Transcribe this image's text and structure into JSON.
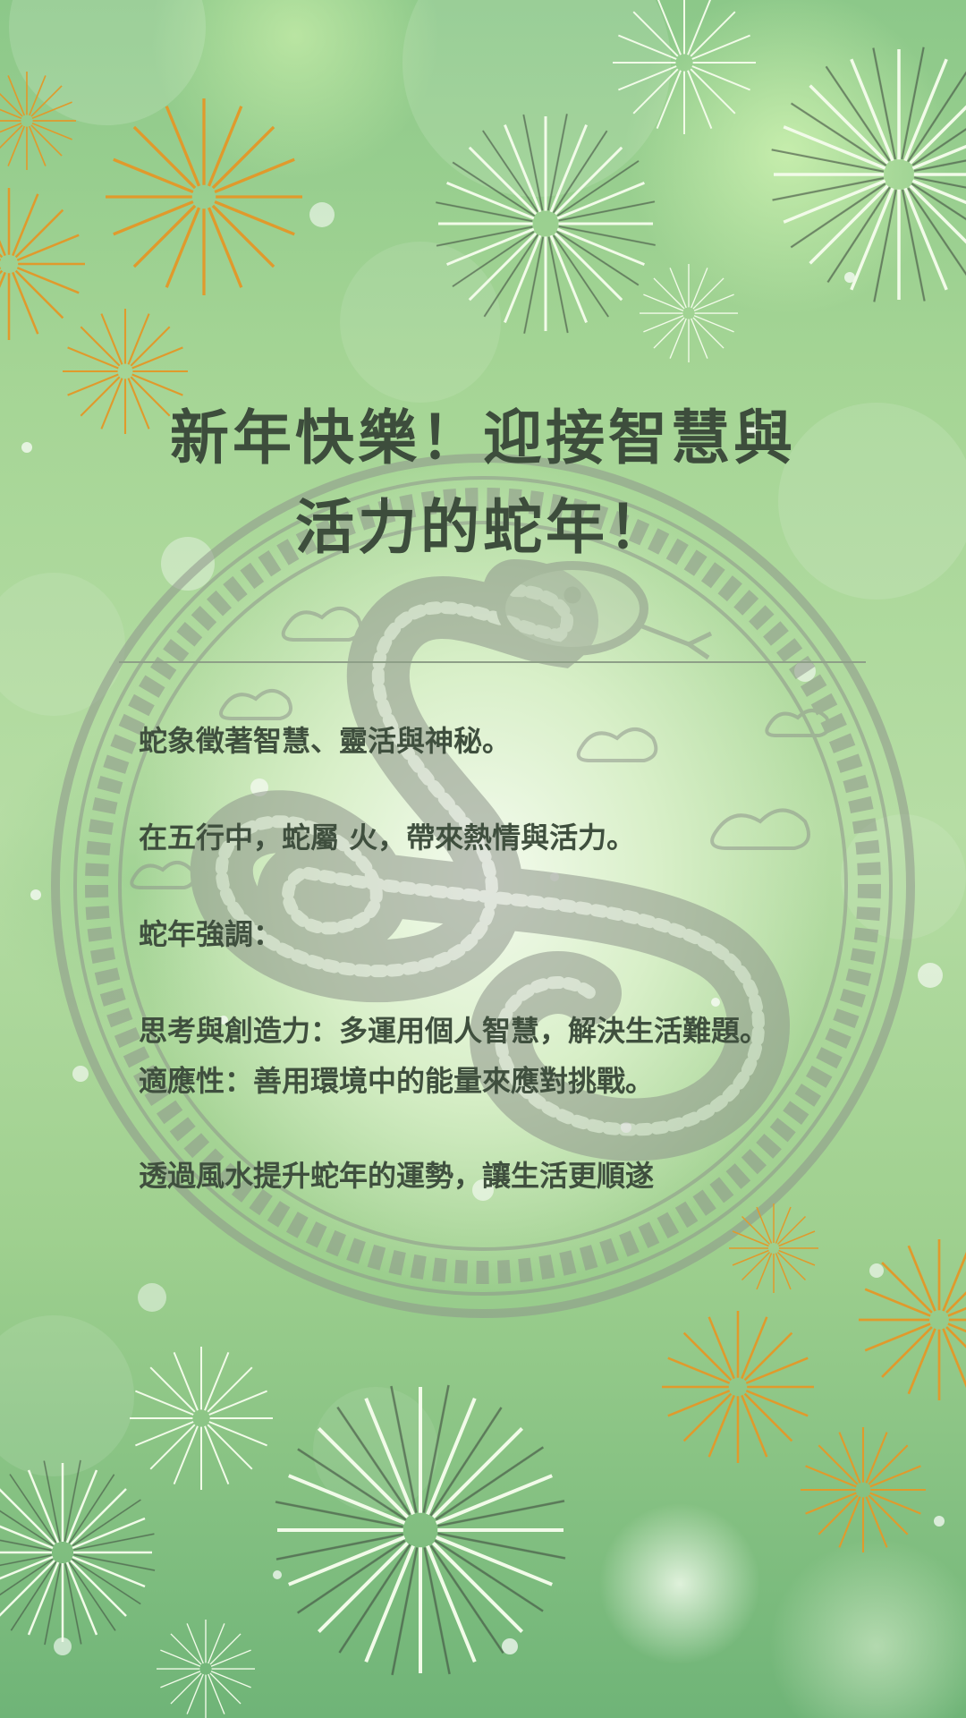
{
  "title": {
    "line1": "新年快樂！迎接智慧與",
    "line2": "活力的蛇年！"
  },
  "content": {
    "p1": "蛇象徵著智慧、靈活與神秘。",
    "p2": "在五行中，蛇屬 火，帶來熱情與活力。",
    "p3": "蛇年強調：",
    "p4a": "思考與創造力：多運用個人智慧，解決生活難題。",
    "p4b": "適應性：善用環境中的能量來應對挑戰。",
    "p5": "透過風水提升蛇年的運勢，讓生活更順遂"
  },
  "colors": {
    "background": "#a5d595",
    "text": "#3d4d3c",
    "firework_orange": "#e09a2c",
    "firework_light": "#f2fbe9",
    "snake_emblem": "#8f968c"
  }
}
